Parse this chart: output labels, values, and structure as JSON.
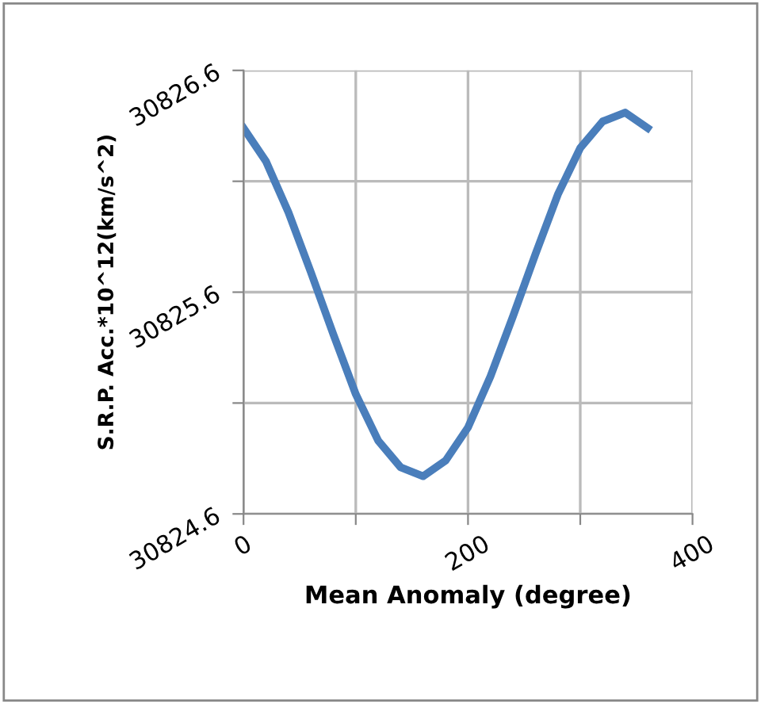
{
  "chart_data": {
    "type": "line",
    "xlabel": "Mean Anomaly (degree)",
    "ylabel": "S.R.P. Acc.*10^12(km/s^2)",
    "x": [
      0,
      20,
      40,
      60,
      80,
      100,
      120,
      140,
      160,
      180,
      200,
      220,
      240,
      260,
      280,
      300,
      320,
      340,
      360
    ],
    "series": [
      {
        "color": "#4a7ebb",
        "values": [
          30826.34,
          30826.19,
          30825.96,
          30825.69,
          30825.41,
          30825.14,
          30824.93,
          30824.81,
          30824.77,
          30824.84,
          30824.99,
          30825.22,
          30825.49,
          30825.77,
          30826.04,
          30826.25,
          30826.37,
          30826.41,
          30826.34
        ]
      }
    ],
    "xlim": [
      0,
      400
    ],
    "xticks": [
      0,
      {
        "value": 100,
        "label": null
      },
      200,
      {
        "value": 300,
        "label": null
      },
      400
    ],
    "ylim": [
      30824.6,
      30826.6
    ],
    "yticks": [
      {
        "value": 30824.6,
        "label": "30824.6"
      },
      {
        "value": 30825.1,
        "label": null
      },
      {
        "value": 30825.6,
        "label": "30825.6"
      },
      {
        "value": 30826.1,
        "label": null
      },
      {
        "value": 30826.6,
        "label": "30826.6"
      }
    ],
    "grid": true,
    "marker": "none",
    "line_style": "solid"
  }
}
